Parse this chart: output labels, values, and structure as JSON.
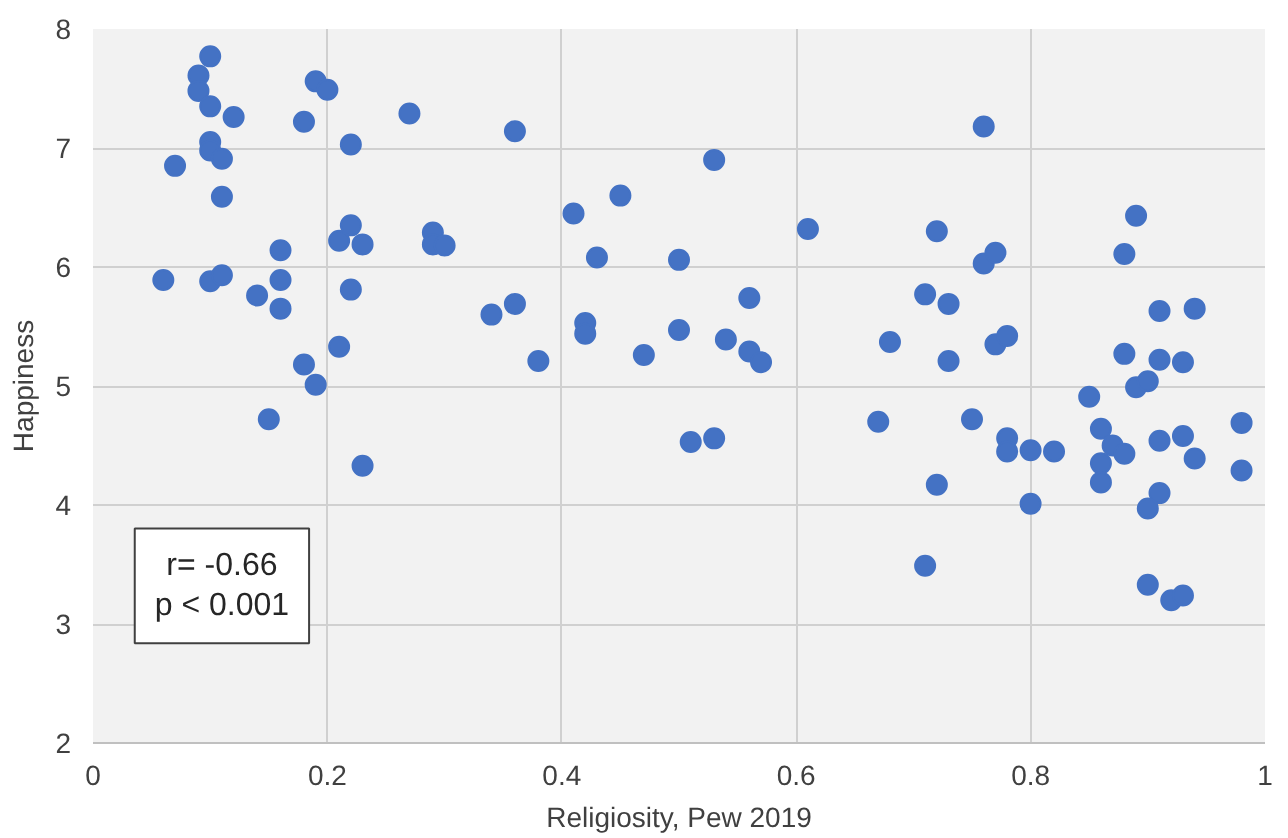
{
  "chart_data": {
    "type": "scatter",
    "xlabel": "Religiosity, Pew 2019",
    "ylabel": "Happiness",
    "annotations": [
      "r= -0.66",
      "p < 0.001"
    ],
    "xlim": [
      0,
      1
    ],
    "xticks": [
      0,
      0.2,
      0.4,
      0.6,
      0.8,
      1
    ],
    "ylim": [
      2,
      8
    ],
    "yticks": [
      2,
      3,
      4,
      5,
      6,
      7,
      8
    ],
    "grid": true,
    "marker": "circle",
    "series": [
      {
        "color": "#4472c4",
        "x": [
          0.1,
          0.09,
          0.09,
          0.1,
          0.12,
          0.07,
          0.1,
          0.1,
          0.11,
          0.11,
          0.06,
          0.1,
          0.11,
          0.14,
          0.16,
          0.16,
          0.16,
          0.15,
          0.18,
          0.19,
          0.2,
          0.18,
          0.19,
          0.21,
          0.22,
          0.23,
          0.22,
          0.22,
          0.21,
          0.23,
          0.27,
          0.29,
          0.29,
          0.3,
          0.34,
          0.36,
          0.36,
          0.38,
          0.41,
          0.45,
          0.43,
          0.42,
          0.42,
          0.47,
          0.5,
          0.5,
          0.53,
          0.54,
          0.56,
          0.56,
          0.57,
          0.51,
          0.53,
          0.61,
          0.67,
          0.68,
          0.71,
          0.72,
          0.73,
          0.73,
          0.72,
          0.71,
          0.75,
          0.76,
          0.76,
          0.77,
          0.77,
          0.78,
          0.78,
          0.78,
          0.8,
          0.82,
          0.8,
          0.85,
          0.86,
          0.87,
          0.88,
          0.86,
          0.86,
          0.88,
          0.89,
          0.88,
          0.89,
          0.9,
          0.91,
          0.91,
          0.93,
          0.94,
          0.91,
          0.93,
          0.94,
          0.91,
          0.9,
          0.9,
          0.92,
          0.93,
          0.98,
          0.98
        ],
        "values": [
          7.77,
          7.61,
          7.48,
          7.35,
          7.26,
          6.85,
          7.05,
          6.98,
          6.91,
          6.59,
          5.89,
          5.88,
          5.93,
          5.76,
          6.14,
          5.89,
          5.65,
          4.72,
          7.22,
          7.56,
          7.49,
          5.18,
          5.01,
          6.22,
          6.35,
          6.19,
          7.03,
          5.81,
          5.33,
          4.33,
          7.29,
          6.29,
          6.19,
          6.18,
          5.6,
          5.69,
          7.14,
          5.21,
          6.45,
          6.6,
          6.08,
          5.53,
          5.44,
          5.26,
          6.06,
          5.47,
          6.9,
          5.39,
          5.74,
          5.29,
          5.2,
          4.53,
          4.56,
          6.32,
          4.7,
          5.37,
          5.77,
          6.3,
          5.69,
          5.21,
          4.17,
          3.49,
          4.72,
          7.18,
          6.03,
          6.12,
          5.35,
          5.42,
          4.56,
          4.45,
          4.46,
          4.45,
          4.01,
          4.91,
          4.64,
          4.5,
          4.43,
          4.35,
          4.19,
          6.11,
          6.43,
          5.27,
          4.99,
          5.04,
          5.63,
          5.22,
          5.2,
          5.65,
          4.54,
          4.58,
          4.39,
          4.1,
          3.97,
          3.33,
          3.2,
          3.24,
          4.69,
          4.29
        ]
      }
    ]
  }
}
